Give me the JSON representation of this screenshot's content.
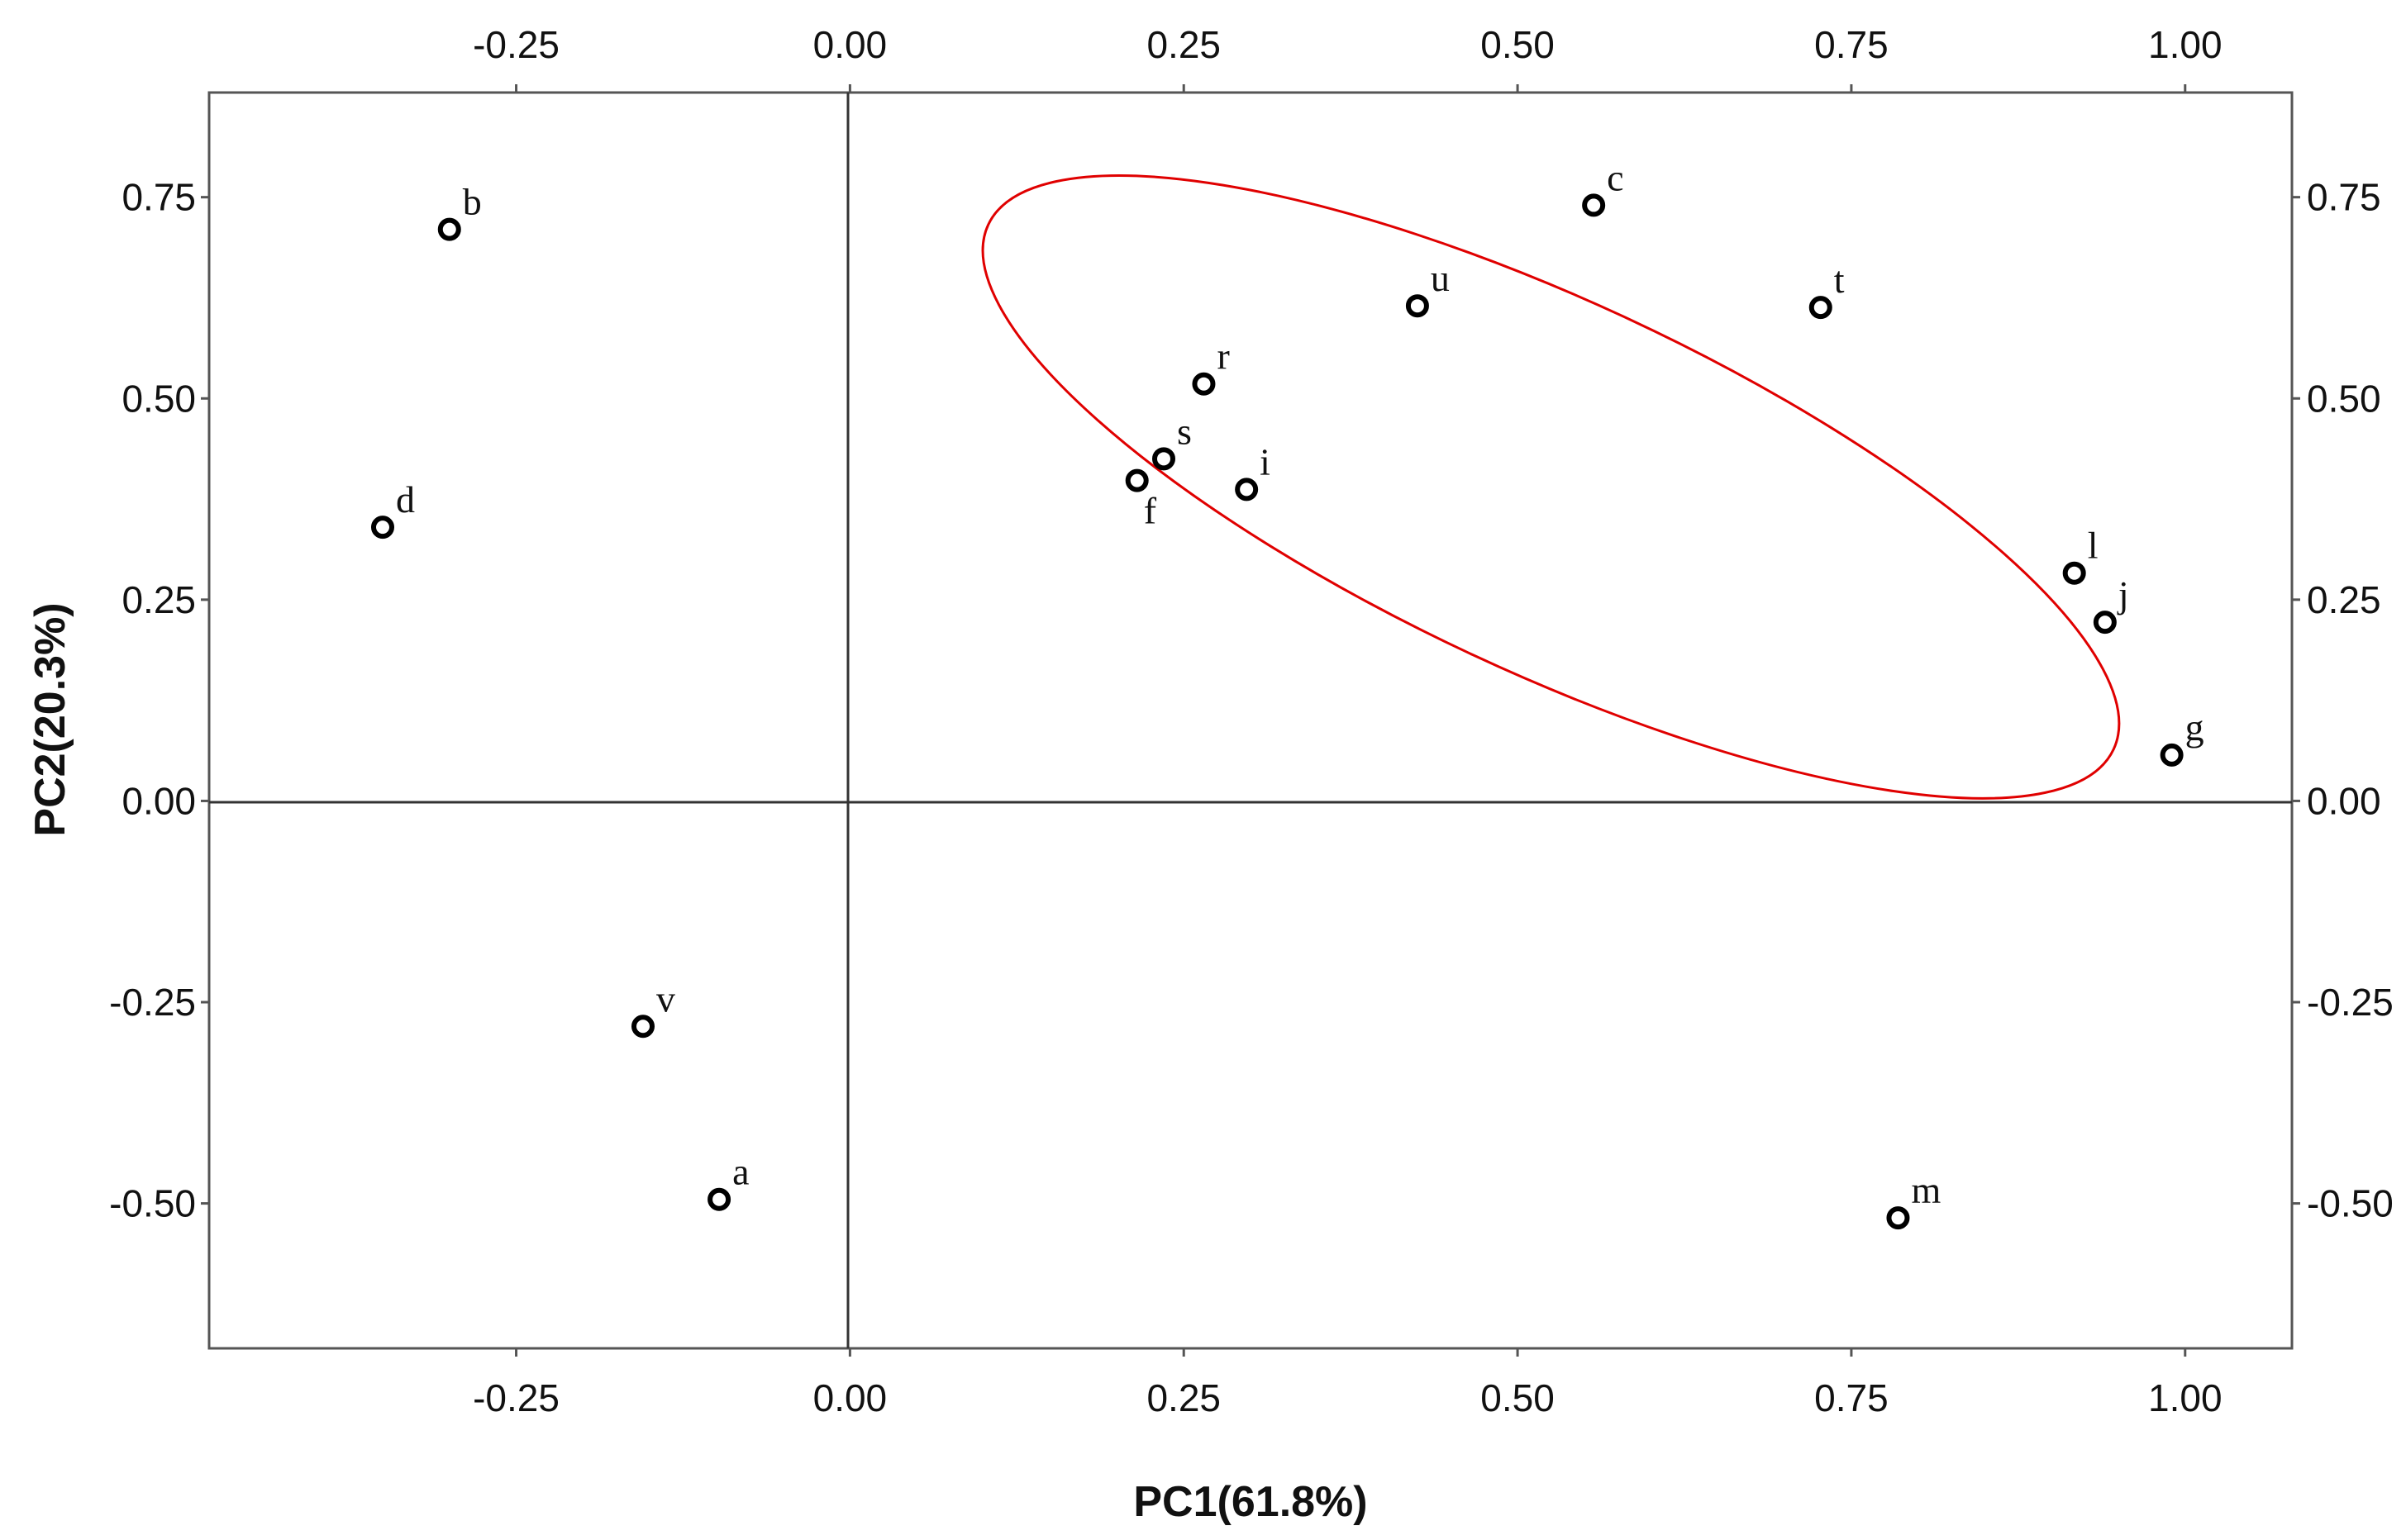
{
  "chart_data": {
    "type": "scatter",
    "title": "",
    "xlabel": "PC1(61.8%)",
    "ylabel": "PC2(20.3%)",
    "xlim": [
      -0.48,
      1.08
    ],
    "ylim": [
      -0.68,
      0.88
    ],
    "xticks": [
      -0.25,
      0.0,
      0.25,
      0.5,
      0.75,
      1.0
    ],
    "yticks": [
      -0.5,
      -0.25,
      0.0,
      0.25,
      0.5,
      0.75
    ],
    "xtick_labels": [
      "-0.25",
      "0.00",
      "0.25",
      "0.50",
      "0.75",
      "1.00"
    ],
    "ytick_labels": [
      "-0.50",
      "-0.25",
      "0.00",
      "0.25",
      "0.50",
      "0.75"
    ],
    "axis_ticks_on_all_sides": true,
    "reference_lines": {
      "x": 0,
      "y": 0
    },
    "grid": false,
    "points": [
      {
        "label": "b",
        "x": -0.3,
        "y": 0.71
      },
      {
        "label": "d",
        "x": -0.35,
        "y": 0.34
      },
      {
        "label": "v",
        "x": -0.155,
        "y": -0.28
      },
      {
        "label": "a",
        "x": -0.098,
        "y": -0.495
      },
      {
        "label": "c",
        "x": 0.557,
        "y": 0.74
      },
      {
        "label": "u",
        "x": 0.425,
        "y": 0.615
      },
      {
        "label": "t",
        "x": 0.727,
        "y": 0.613
      },
      {
        "label": "r",
        "x": 0.265,
        "y": 0.518
      },
      {
        "label": "s",
        "x": 0.235,
        "y": 0.425
      },
      {
        "label": "f",
        "x": 0.215,
        "y": 0.398
      },
      {
        "label": "i",
        "x": 0.297,
        "y": 0.387
      },
      {
        "label": "l",
        "x": 0.917,
        "y": 0.283
      },
      {
        "label": "j",
        "x": 0.94,
        "y": 0.222
      },
      {
        "label": "g",
        "x": 0.99,
        "y": 0.057
      },
      {
        "label": "m",
        "x": 0.785,
        "y": -0.518
      }
    ],
    "ellipse": {
      "color": "#e00000",
      "cx": 0.525,
      "cy": 0.39,
      "rx": 0.465,
      "ry": 0.23,
      "rotation_deg": 25
    }
  }
}
